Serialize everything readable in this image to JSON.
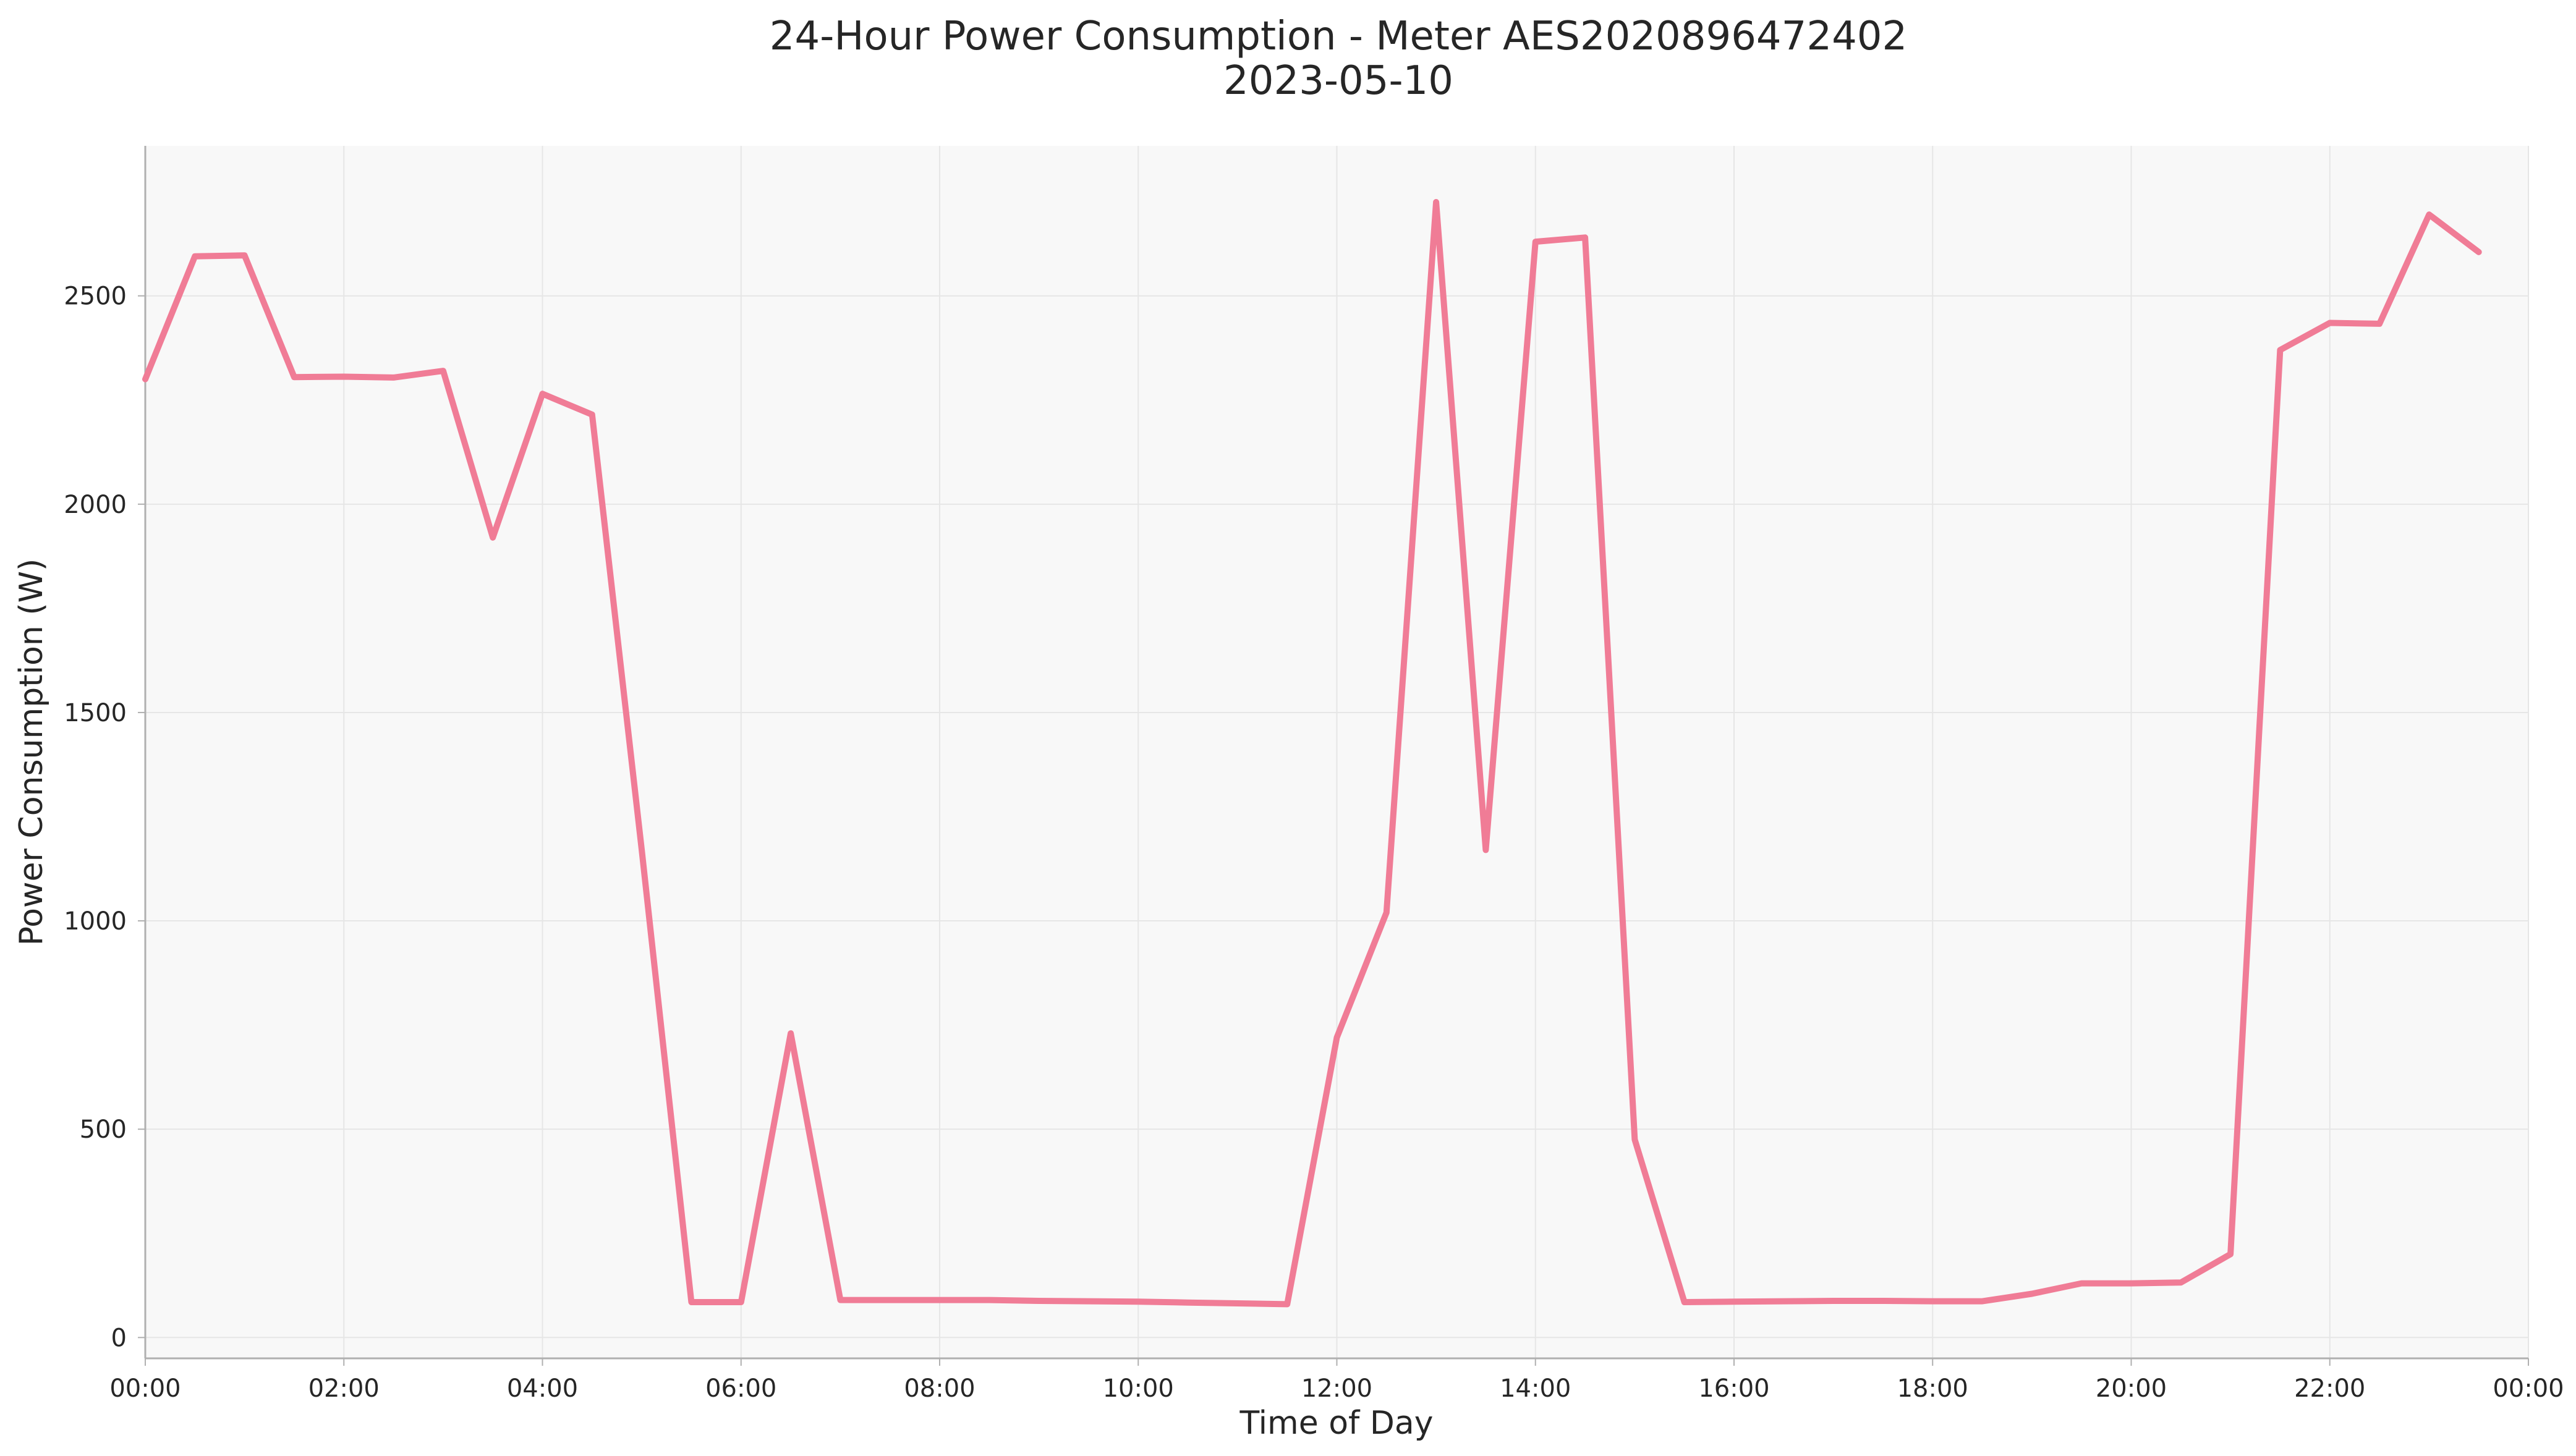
{
  "chart_data": {
    "type": "line",
    "title": "24-Hour Power Consumption - Meter AES2020896472402",
    "subtitle": "2023-05-10",
    "xlabel": "Time of Day",
    "ylabel": "Power Consumption (W)",
    "x_ticks": [
      "00:00",
      "02:00",
      "04:00",
      "06:00",
      "08:00",
      "10:00",
      "12:00",
      "14:00",
      "16:00",
      "18:00",
      "20:00",
      "22:00",
      "00:00"
    ],
    "y_ticks": [
      0,
      500,
      1000,
      1500,
      2000,
      2500
    ],
    "xlim_hours": [
      0,
      24
    ],
    "ylim": [
      -50,
      2860
    ],
    "grid": true,
    "colors": {
      "line": "#f07c96",
      "plot_background": "#f8f8f8",
      "grid": "#e6e6e6",
      "axis": "#b0b0b0"
    },
    "series": [
      {
        "x": [
          "00:00",
          "00:30",
          "01:00",
          "01:30",
          "02:00",
          "02:30",
          "03:00",
          "03:30",
          "04:00",
          "04:30",
          "05:00",
          "05:30",
          "06:00",
          "06:30",
          "07:00",
          "07:30",
          "08:00",
          "08:30",
          "09:00",
          "09:30",
          "10:00",
          "10:30",
          "11:00",
          "11:30",
          "12:00",
          "12:30",
          "13:00",
          "13:30",
          "14:00",
          "14:30",
          "15:00",
          "15:30",
          "16:00",
          "16:30",
          "17:00",
          "17:30",
          "18:00",
          "18:30",
          "19:00",
          "19:30",
          "20:00",
          "20:30",
          "21:00",
          "21:30",
          "22:00",
          "22:30",
          "23:00",
          "23:30"
        ],
        "values": [
          2300,
          2595,
          2597,
          2305,
          2306,
          2304,
          2320,
          1920,
          2265,
          2215,
          1170,
          85,
          85,
          730,
          90,
          90,
          90,
          90,
          88,
          87,
          86,
          84,
          82,
          80,
          720,
          1020,
          2725,
          1170,
          2630,
          2640,
          475,
          85,
          86,
          87,
          88,
          88,
          87,
          87,
          105,
          130,
          130,
          132,
          200,
          2370,
          2435,
          2433,
          2695,
          2605
        ]
      }
    ]
  }
}
